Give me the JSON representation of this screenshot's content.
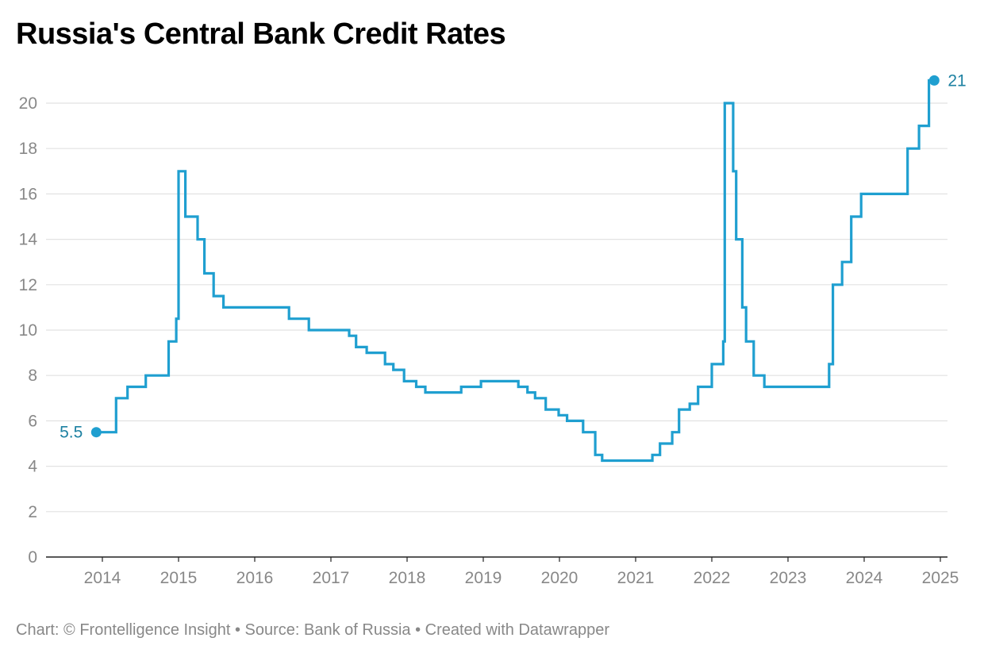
{
  "title": "Russia's Central Bank Credit Rates",
  "footer": {
    "text": "Chart: © Frontelligence Insight • Source: Bank of Russia • Created with Datawrapper"
  },
  "colors": {
    "line": "#1f9fd0",
    "label": "#1d81a2",
    "grid": "#e2e2e2",
    "axis": "#222222",
    "tick": "#888888"
  },
  "chart_data": {
    "type": "line",
    "title": "Russia's Central Bank Credit Rates",
    "xlabel": "",
    "ylabel": "",
    "xlim": [
      2013.4,
      2025.1
    ],
    "ylim": [
      0,
      21.5
    ],
    "grid": true,
    "line_shape": "step",
    "x_ticks": [
      "2014",
      "2015",
      "2016",
      "2017",
      "2018",
      "2019",
      "2020",
      "2021",
      "2022",
      "2023",
      "2024",
      "2025"
    ],
    "y_ticks": [
      "0",
      "2",
      "4",
      "6",
      "8",
      "10",
      "12",
      "14",
      "16",
      "18",
      "20"
    ],
    "series": [
      {
        "x": [
          2013.92,
          2014.18,
          2014.33,
          2014.57,
          2014.87,
          2014.97,
          2015.0,
          2015.09,
          2015.25,
          2015.34,
          2015.46,
          2015.59,
          2016.45,
          2016.71,
          2017.24,
          2017.33,
          2017.47,
          2017.71,
          2017.82,
          2017.96,
          2018.12,
          2018.24,
          2018.71,
          2018.97,
          2019.46,
          2019.58,
          2019.68,
          2019.82,
          2019.99,
          2020.1,
          2020.31,
          2020.47,
          2020.56,
          2021.22,
          2021.32,
          2021.48,
          2021.57,
          2021.71,
          2021.82,
          2022.0,
          2022.15,
          2022.17,
          2022.28,
          2022.32,
          2022.4,
          2022.45,
          2022.55,
          2022.69,
          2023.54,
          2023.59,
          2023.62,
          2023.71,
          2023.83,
          2023.96,
          2024.57,
          2024.72,
          2024.85,
          2024.92
        ],
        "y": [
          5.5,
          7.0,
          7.5,
          8.0,
          9.5,
          10.5,
          17.0,
          15.0,
          14.0,
          12.5,
          11.5,
          11.0,
          10.5,
          10.0,
          9.75,
          9.25,
          9.0,
          8.5,
          8.25,
          7.75,
          7.5,
          7.25,
          7.5,
          7.75,
          7.5,
          7.25,
          7.0,
          6.5,
          6.25,
          6.0,
          5.5,
          4.5,
          4.25,
          4.5,
          5.0,
          5.5,
          6.5,
          6.75,
          7.5,
          8.5,
          9.5,
          20.0,
          17.0,
          14.0,
          11.0,
          9.5,
          8.0,
          7.5,
          8.5,
          12.0,
          12.0,
          13.0,
          15.0,
          16.0,
          18.0,
          19.0,
          21.0,
          21.0
        ]
      }
    ],
    "annotations": [
      {
        "text": "5.5",
        "x": 2013.92,
        "y": 5.5,
        "side": "left"
      },
      {
        "text": "21",
        "x": 2024.92,
        "y": 21.0,
        "side": "right"
      }
    ]
  }
}
